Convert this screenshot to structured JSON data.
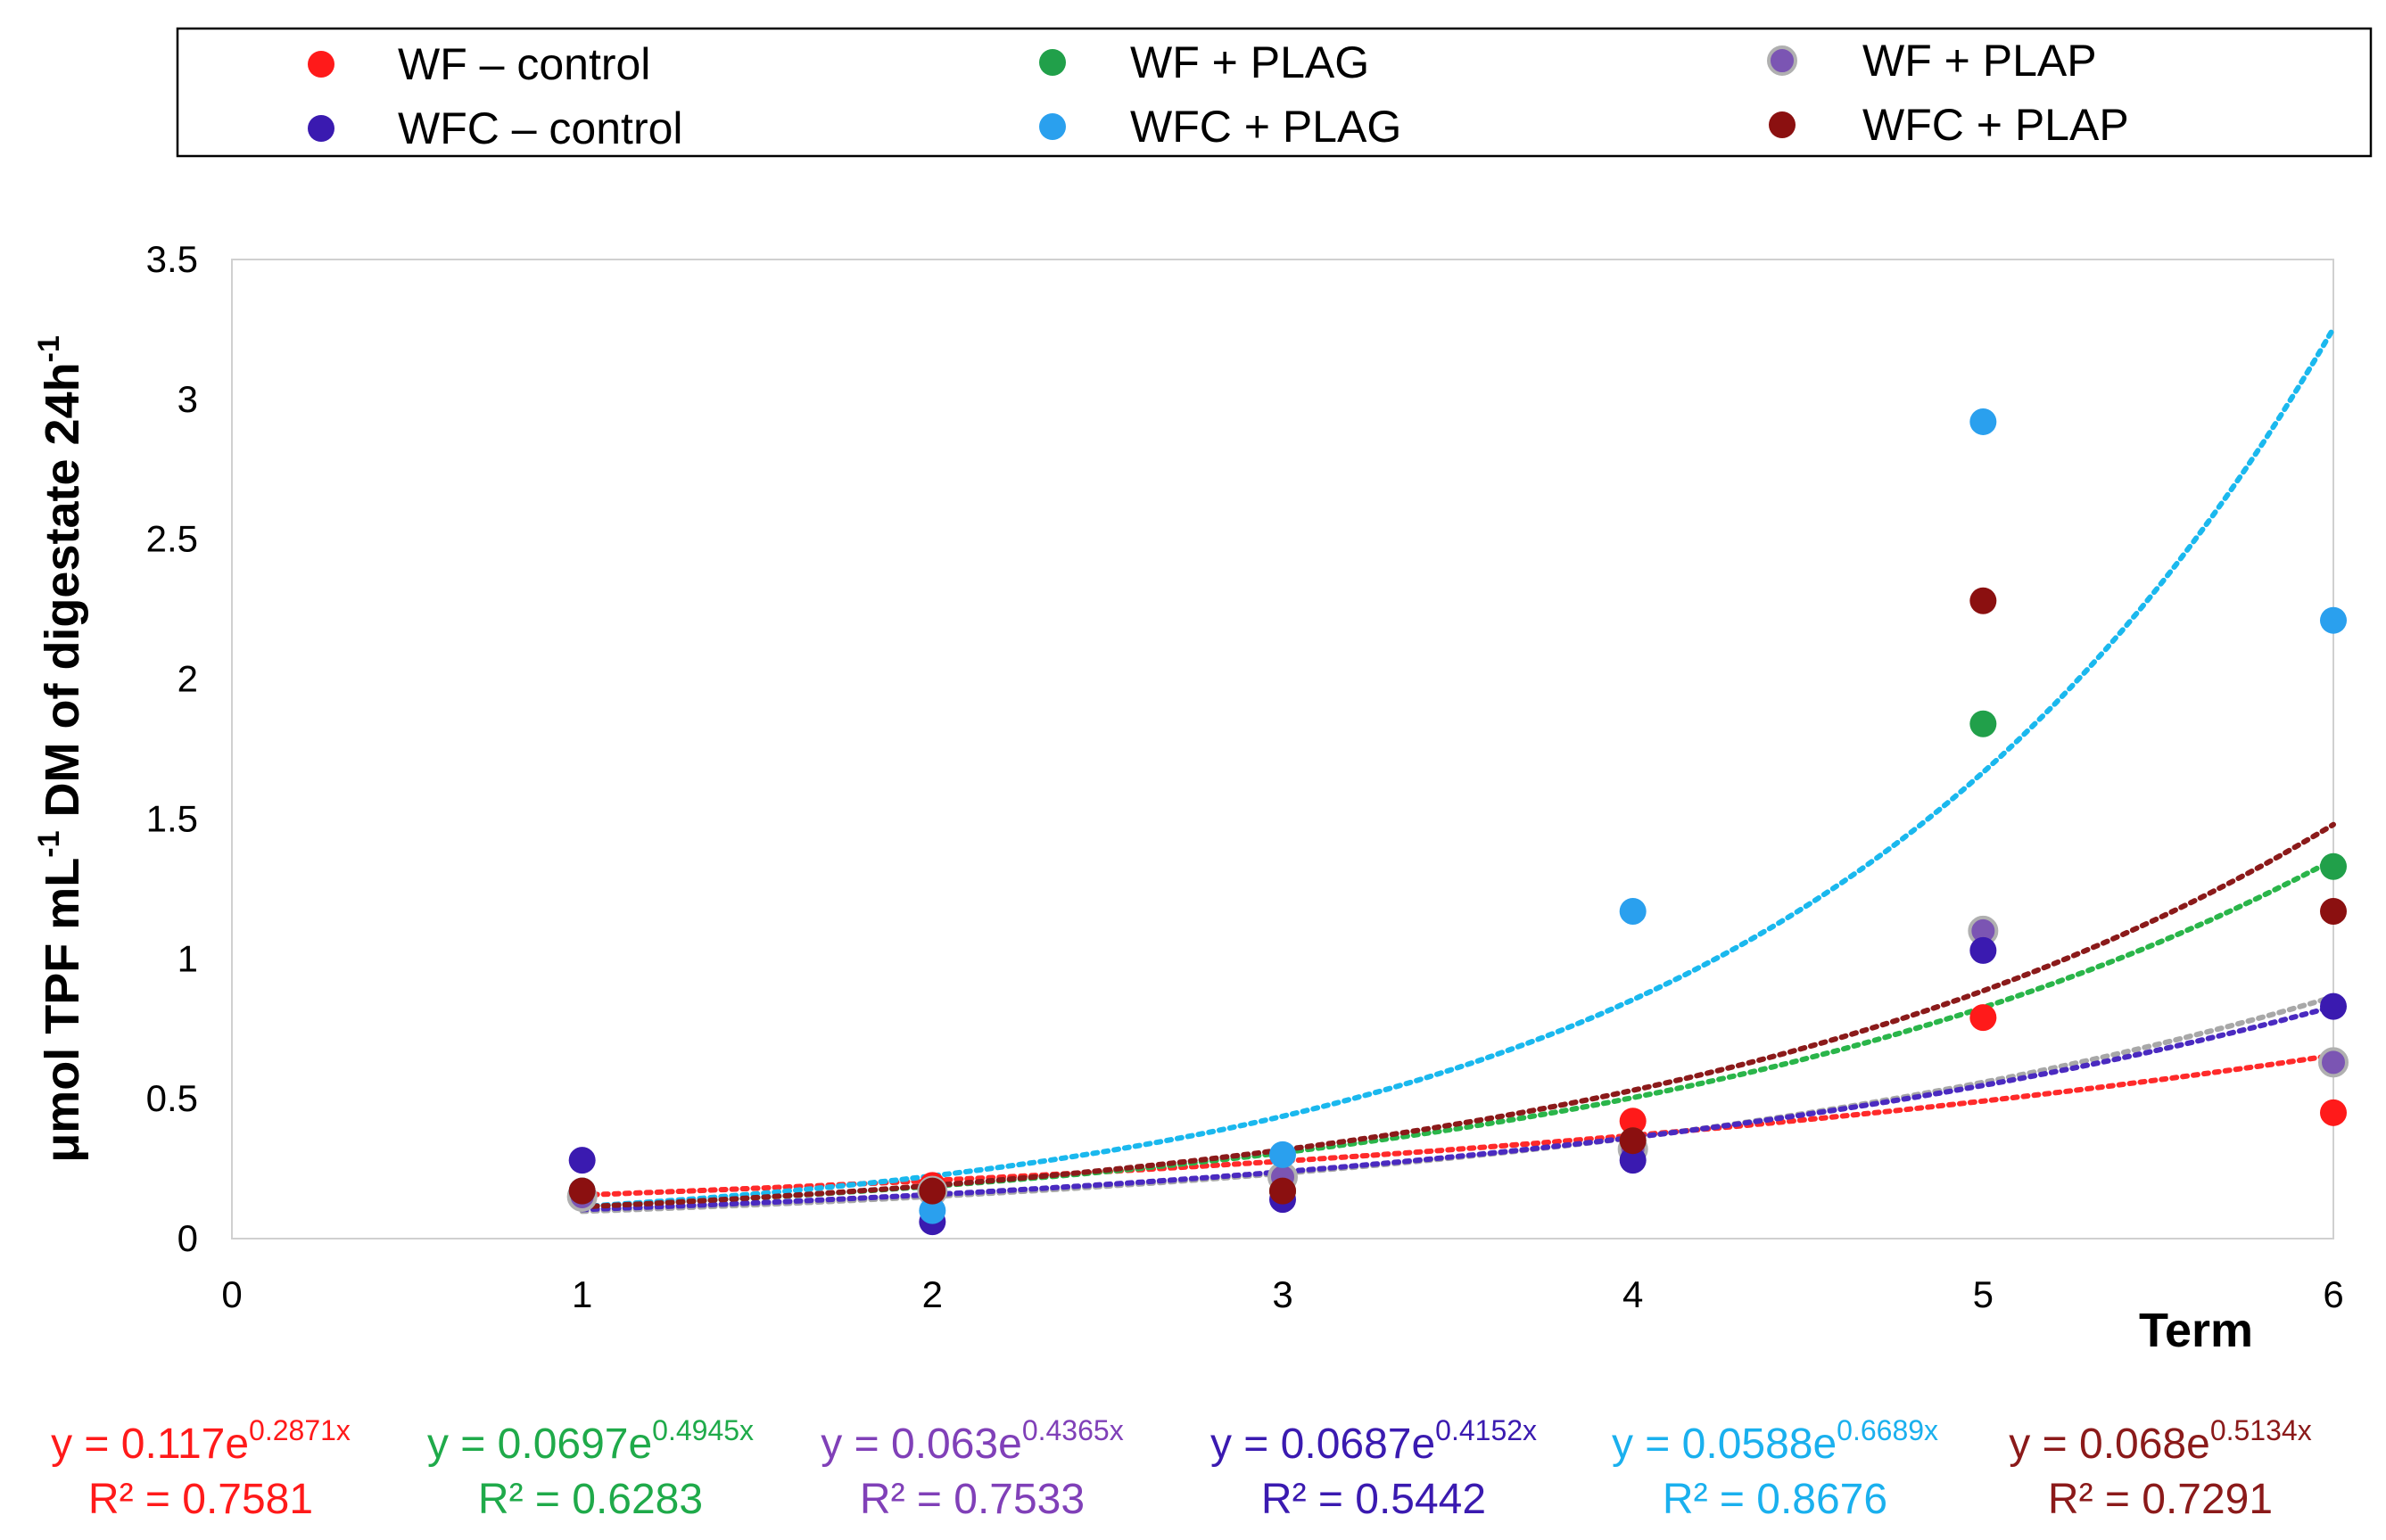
{
  "chart_data": {
    "type": "scatter",
    "title": "",
    "xlabel": "Term",
    "ylabel_parts": {
      "a": "μmol TPF mL",
      "a_sup": "-1",
      "b": " DM of digestate 24h",
      "b_sup": "-1"
    },
    "xlim": [
      0,
      6
    ],
    "ylim": [
      0,
      3.5
    ],
    "x_ticks": [
      "0",
      "1",
      "2",
      "3",
      "4",
      "5",
      "6"
    ],
    "y_ticks": [
      "0",
      "0.5",
      "1",
      "1.5",
      "2",
      "2.5",
      "3",
      "3.5"
    ],
    "grid": false,
    "legend_position": "top",
    "series": [
      {
        "name": "WF – control",
        "color": "#ff1a1a",
        "x": [
          1,
          2,
          3,
          4,
          5,
          6
        ],
        "y": [
          0.17,
          0.19,
          0.17,
          0.42,
          0.79,
          0.45
        ],
        "trend": {
          "a": 0.117,
          "b": 0.2871,
          "color": "#ff2a2a"
        },
        "equation": {
          "prefix": "y = 0.117e",
          "exp": "0.2871x",
          "r2": "R² = 0.7581",
          "color": "#ff1a1a"
        }
      },
      {
        "name": "WF + PLAG",
        "color": "#21a04a",
        "x": [
          1,
          2,
          3,
          4,
          5,
          6
        ],
        "y": [
          0.17,
          0.17,
          0.17,
          0.35,
          1.84,
          1.33
        ],
        "trend": {
          "a": 0.0697,
          "b": 0.4945,
          "color": "#2ab54a"
        },
        "equation": {
          "prefix": "y = 0.0697e",
          "exp": "0.4945x",
          "r2": "R² = 0.6283",
          "color": "#1faa4a"
        }
      },
      {
        "name": "WF + PLAP",
        "color": "#7b55b3",
        "x": [
          1,
          2,
          3,
          4,
          5,
          6
        ],
        "y": [
          0.15,
          0.17,
          0.22,
          0.32,
          1.1,
          0.63
        ],
        "trend": {
          "a": 0.063,
          "b": 0.4365,
          "color": "#a8a8a8"
        },
        "equation": {
          "prefix": "y = 0.063e",
          "exp": "0.4365x",
          "r2": "R² = 0.7533",
          "color": "#8040b8"
        }
      },
      {
        "name": "WFC – control",
        "color": "#3a1ab0",
        "x": [
          1,
          2,
          3,
          4,
          5,
          6
        ],
        "y": [
          0.28,
          0.06,
          0.14,
          0.28,
          1.03,
          0.83
        ],
        "trend": {
          "a": 0.0687,
          "b": 0.4152,
          "color": "#4a2ac0"
        },
        "equation": {
          "prefix": "y = 0.0687e",
          "exp": "0.4152x",
          "r2": "R² = 0.5442",
          "color": "#3a1ab0"
        }
      },
      {
        "name": "WFC + PLAG",
        "color": "#2aa0ee",
        "x": [
          1,
          2,
          3,
          4,
          5,
          6
        ],
        "y": [
          0.17,
          0.1,
          0.3,
          1.17,
          2.92,
          2.21
        ],
        "trend": {
          "a": 0.0588,
          "b": 0.6689,
          "color": "#1ab8ee"
        },
        "equation": {
          "prefix": "y = 0.0588e",
          "exp": "0.6689x",
          "r2": "R² = 0.8676",
          "color": "#1ab0ee"
        }
      },
      {
        "name": "WFC + PLAP",
        "color": "#8b1010",
        "x": [
          1,
          2,
          3,
          4,
          5,
          6
        ],
        "y": [
          0.17,
          0.17,
          0.17,
          0.35,
          2.28,
          1.17
        ],
        "trend": {
          "a": 0.068,
          "b": 0.5134,
          "color": "#8b1a1a"
        },
        "equation": {
          "prefix": "y = 0.068e",
          "exp": "0.5134x",
          "r2": "R² = 0.7291",
          "color": "#8b1a1a"
        }
      }
    ]
  }
}
